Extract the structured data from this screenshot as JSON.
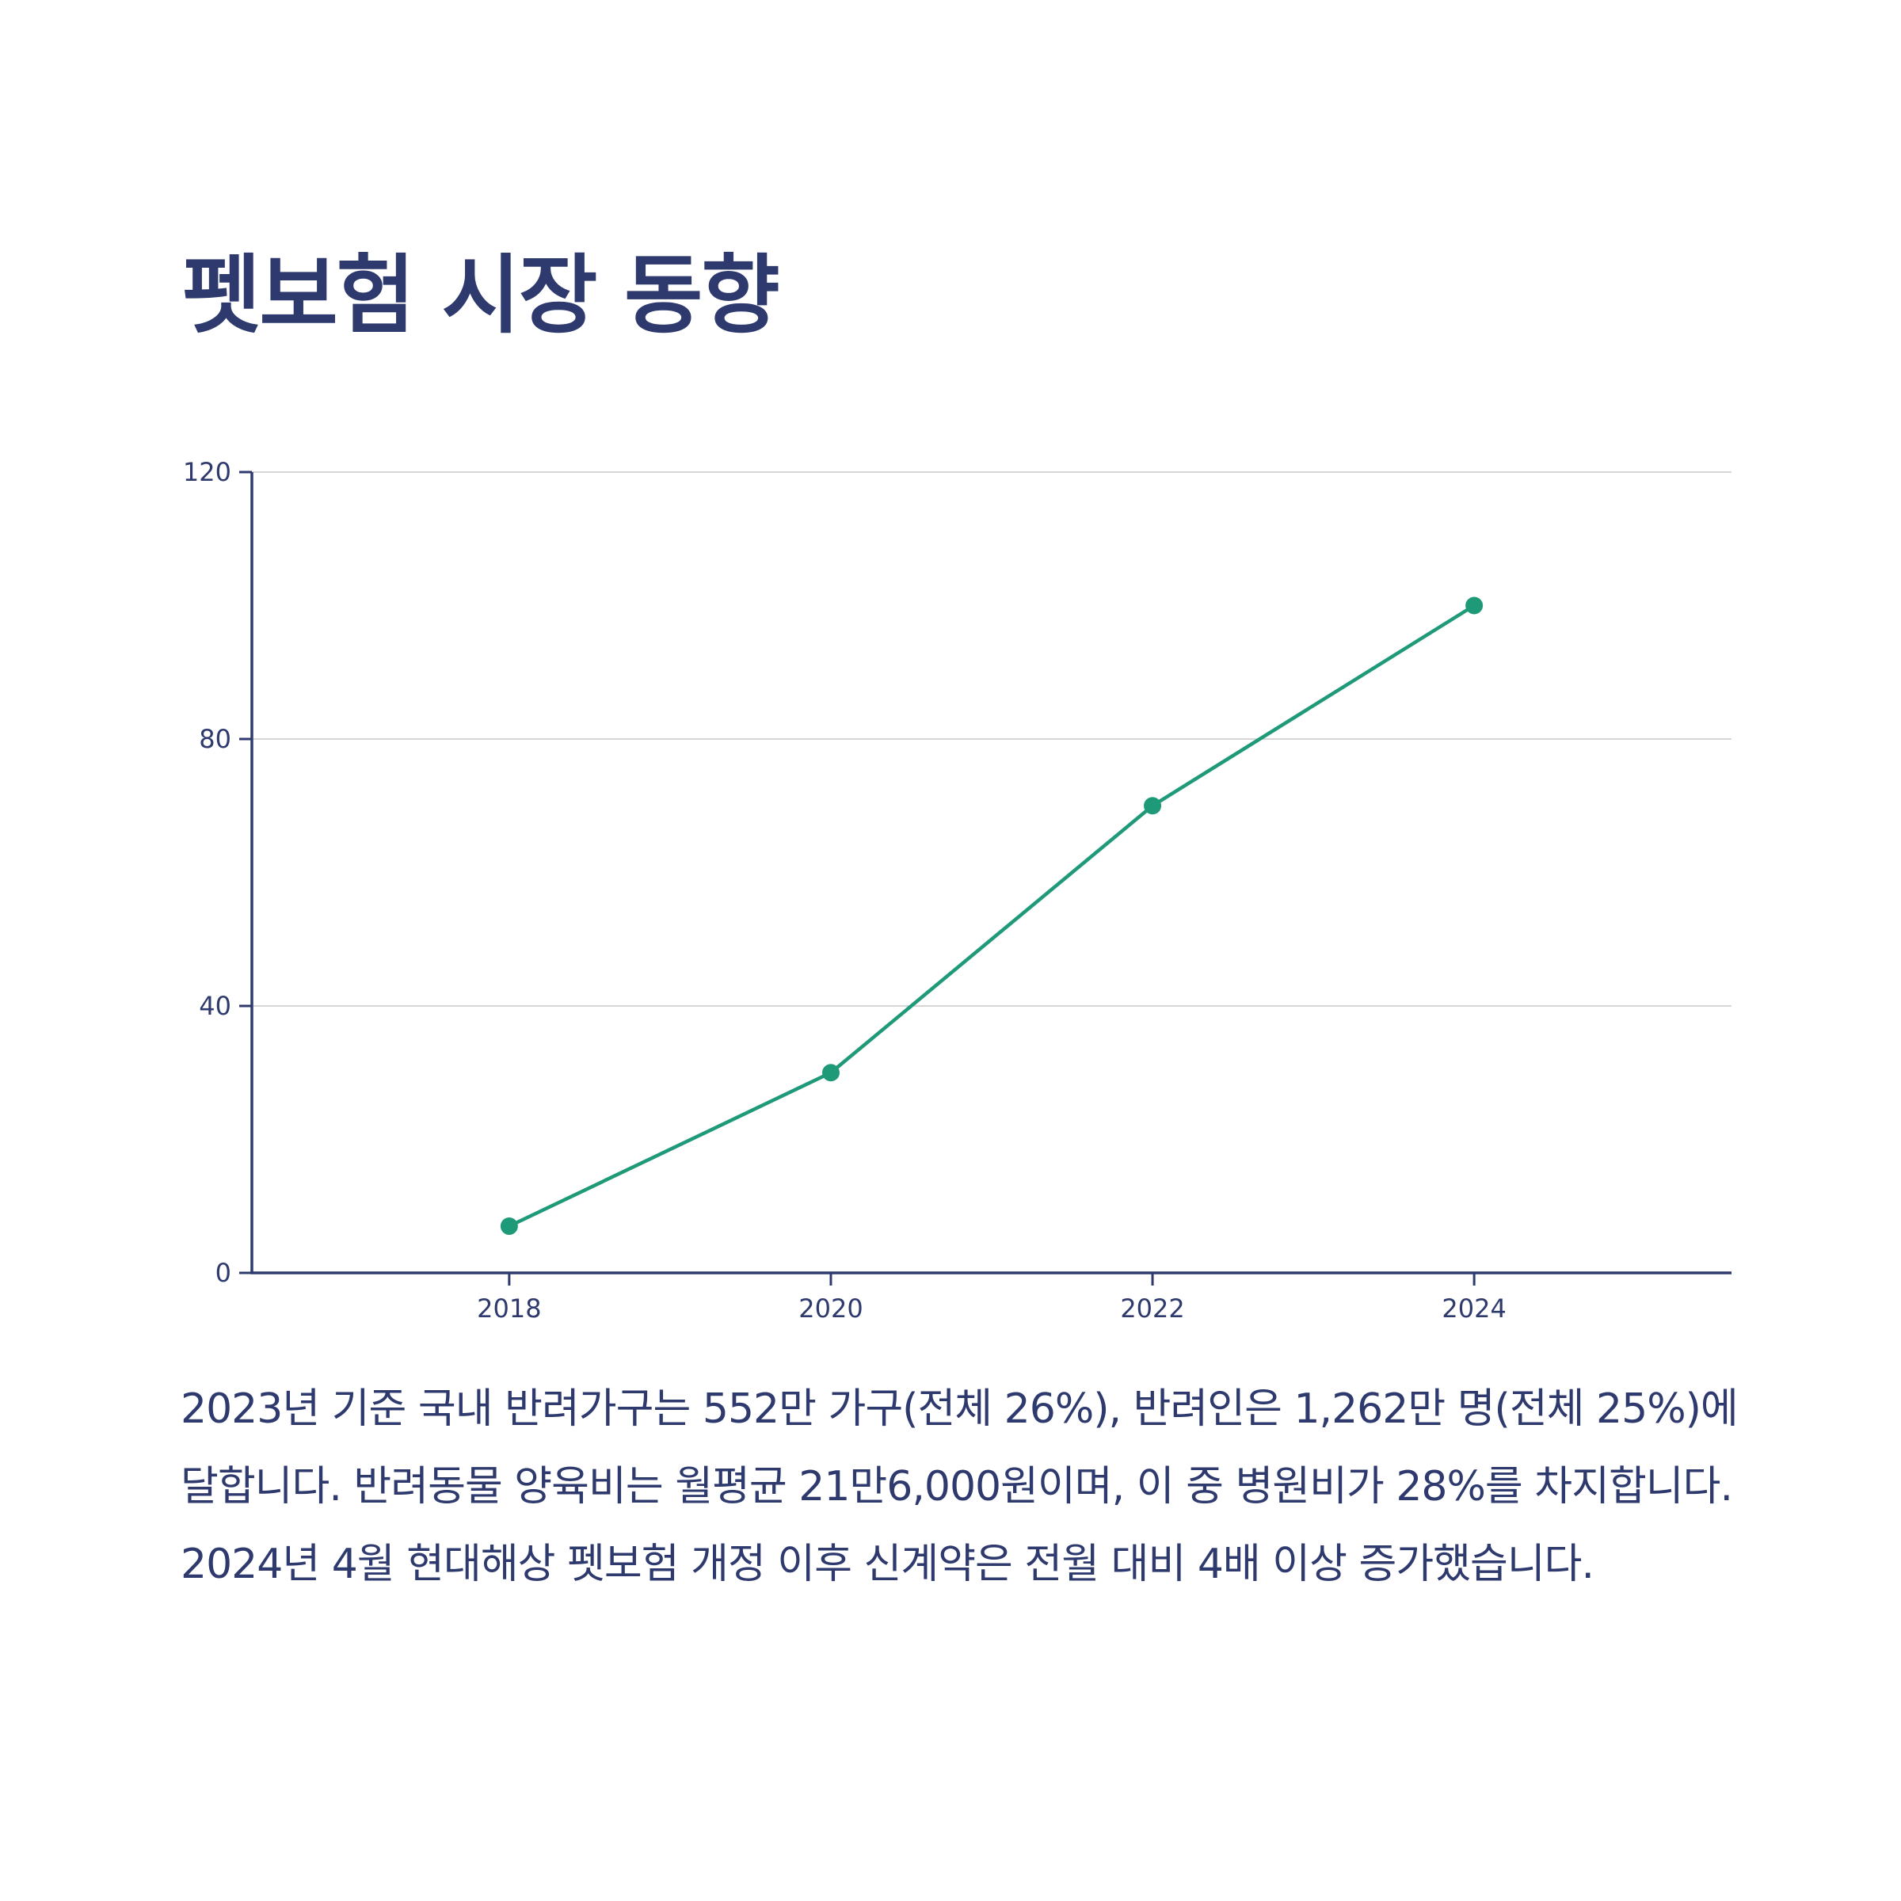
{
  "page": {
    "title": "펫보험 시장 동향",
    "description": "2023년 기준 국내 반려가구는 552만 가구(전체 26%), 반려인은 1,262만 명(전체 25%)에 달합니다. 반려동물 양육비는 월평균 21만6,000원이며, 이 중 병원비가 28%를 차지합니다. 2024년 4월 현대해상 펫보험 개정 이후 신계약은 전월 대비 4배 이상 증가했습니다."
  },
  "colors": {
    "text": "#2e3a6e",
    "axis": "#2e3a6e",
    "grid": "#d6d6d6",
    "line": "#1f9a78"
  },
  "chart_data": {
    "type": "line",
    "x": [
      2018,
      2020,
      2022,
      2024
    ],
    "xticks": [
      "2018",
      "2020",
      "2022",
      "2024"
    ],
    "xlim": [
      2016.4,
      2025.6
    ],
    "series": [
      {
        "values": [
          7,
          30,
          70,
          100
        ]
      }
    ],
    "ylim": [
      0,
      120
    ],
    "yticks": [
      0,
      40,
      80,
      120
    ],
    "grid": true,
    "title": "",
    "xlabel": "",
    "ylabel": ""
  }
}
